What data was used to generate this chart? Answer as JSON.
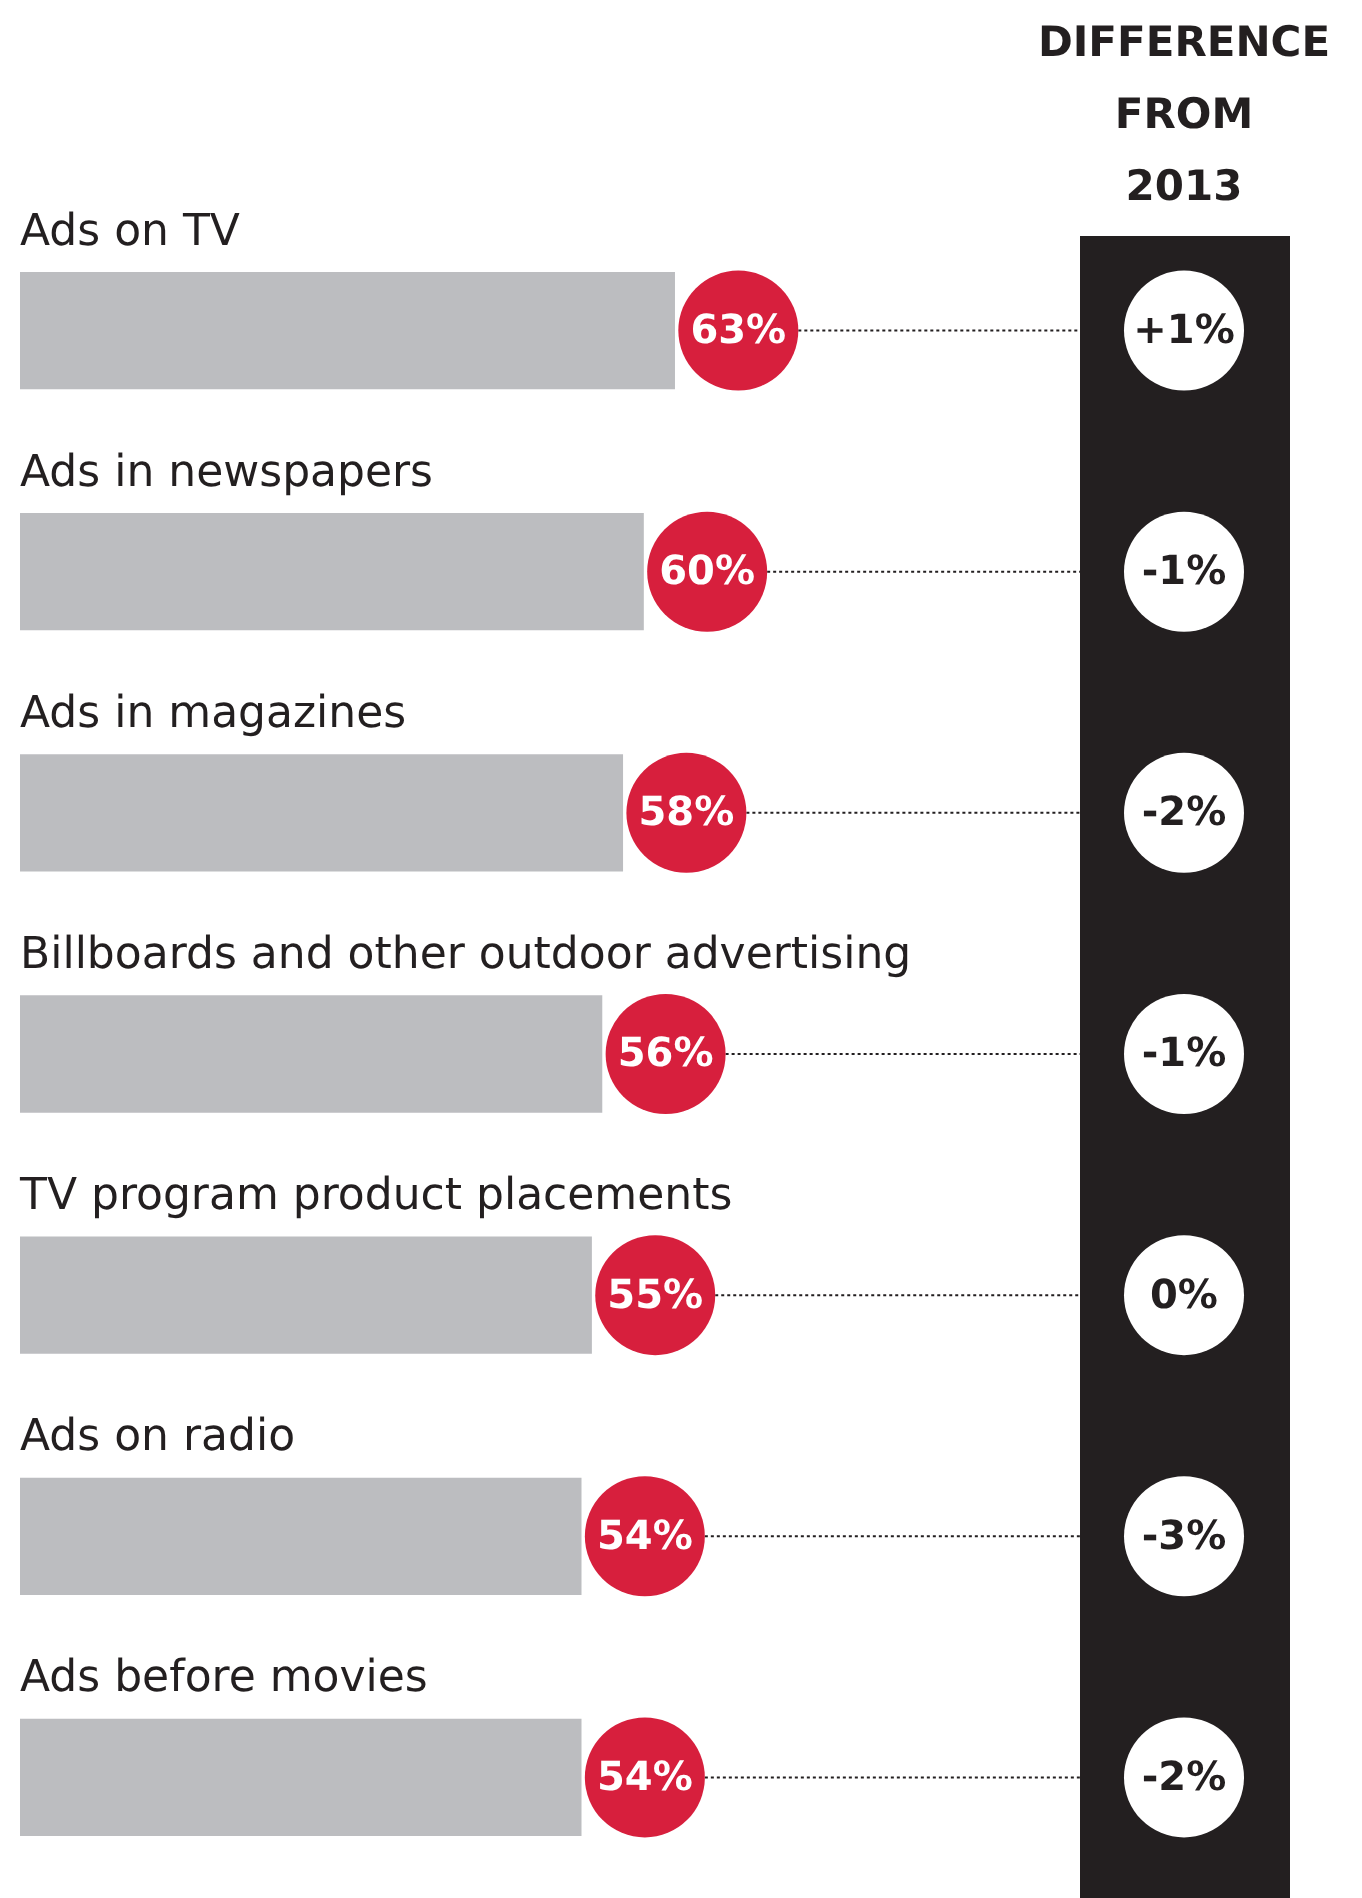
{
  "chart_data": {
    "type": "bar",
    "orientation": "horizontal",
    "categories": [
      "Ads on TV",
      "Ads in newspapers",
      "Ads in magazines",
      "Billboards and other outdoor advertising",
      "TV program product placements",
      "Ads on radio",
      "Ads before movies"
    ],
    "values": [
      63,
      60,
      58,
      56,
      55,
      54,
      54
    ],
    "color": "#bcbdc0",
    "value_labels": [
      "63%",
      "60%",
      "58%",
      "56%",
      "55%",
      "54%",
      "54%"
    ],
    "legend": false,
    "annotations": [
      "DIFFERENCE FROM 2013",
      "+1%",
      "-1%",
      "-2%",
      "-1%",
      "0%",
      "-3%",
      "-2%"
    ]
  }
}
